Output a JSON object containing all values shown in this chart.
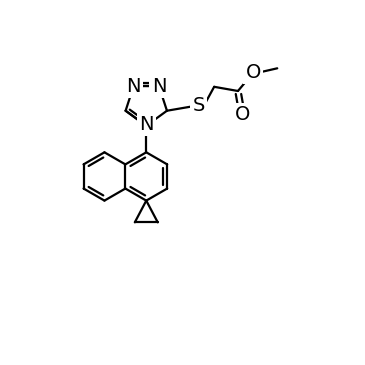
{
  "background_color": "#ffffff",
  "line_color": "#000000",
  "line_width": 1.6,
  "font_size": 14,
  "figsize": [
    3.65,
    3.65
  ],
  "dpi": 100,
  "xlim": [
    -1,
    11
  ],
  "ylim": [
    -1,
    11
  ]
}
